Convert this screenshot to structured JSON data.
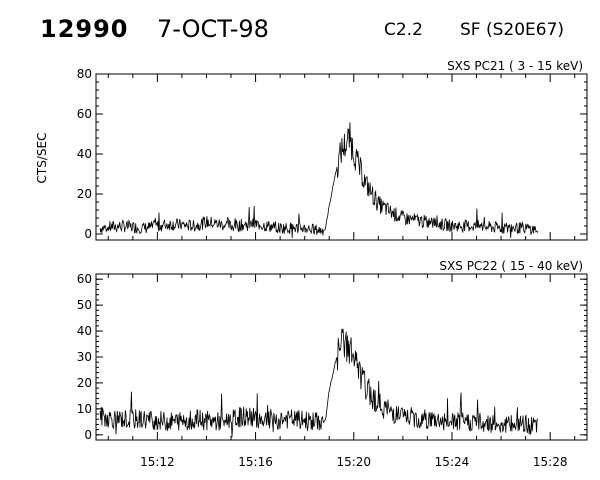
{
  "header": {
    "event_number": "12990",
    "date": "7-OCT-98",
    "goes_class": "C2.2",
    "location": "SF (S20E67)"
  },
  "ylabel": "CTS/SEC",
  "chart_data": [
    {
      "type": "line",
      "title": "SXS PC21  (  3 - 15 keV)",
      "xlabel": "",
      "ylabel": "CTS/SEC",
      "xlim": [
        "15:09:30",
        "15:29:30"
      ],
      "ylim": [
        -3,
        80
      ],
      "yticks": [
        0,
        20,
        40,
        60,
        80
      ],
      "x_tick_labels": [
        "15:12",
        "15:16",
        "15:20",
        "15:24",
        "15:28"
      ],
      "series": [
        {
          "x": [
            "15:09:40",
            "15:10:30",
            "15:11:30",
            "15:12:30",
            "15:13:30",
            "15:14:00",
            "15:15:00",
            "15:16:00",
            "15:17:00",
            "15:18:00",
            "15:18:30",
            "15:18:50",
            "15:19:00",
            "15:19:15",
            "15:19:30",
            "15:19:50",
            "15:20:10",
            "15:20:30",
            "15:21:00",
            "15:21:30",
            "15:22:00",
            "15:23:00",
            "15:24:00",
            "15:25:00",
            "15:26:00",
            "15:27:00",
            "15:27:30"
          ],
          "y": [
            3,
            4,
            3,
            5,
            4,
            6,
            4,
            5,
            3,
            3,
            2,
            2,
            14,
            30,
            42,
            48,
            35,
            25,
            15,
            11,
            8,
            6,
            4,
            4,
            3,
            3,
            2
          ]
        }
      ]
    },
    {
      "type": "line",
      "title": "SXS PC22  ( 15 - 40 keV)",
      "xlabel": "",
      "ylabel": "",
      "xlim": [
        "15:09:30",
        "15:29:30"
      ],
      "ylim": [
        -2,
        62
      ],
      "yticks": [
        0,
        10,
        20,
        30,
        40,
        50,
        60
      ],
      "x_tick_labels": [
        "15:12",
        "15:16",
        "15:20",
        "15:24",
        "15:28"
      ],
      "series": [
        {
          "x": [
            "15:09:40",
            "15:10:30",
            "15:11:30",
            "15:12:30",
            "15:13:30",
            "15:14:30",
            "15:15:30",
            "15:16:30",
            "15:17:30",
            "15:18:30",
            "15:18:50",
            "15:19:00",
            "15:19:15",
            "15:19:30",
            "15:19:50",
            "15:20:10",
            "15:20:30",
            "15:21:00",
            "15:21:30",
            "15:22:00",
            "15:23:00",
            "15:24:00",
            "15:25:00",
            "15:26:00",
            "15:27:00",
            "15:27:30"
          ],
          "y": [
            7,
            6,
            6,
            5,
            6,
            5,
            7,
            6,
            6,
            5,
            5,
            17,
            28,
            35,
            34,
            25,
            18,
            12,
            9,
            7,
            6,
            5,
            5,
            4,
            4,
            3
          ]
        }
      ]
    }
  ]
}
